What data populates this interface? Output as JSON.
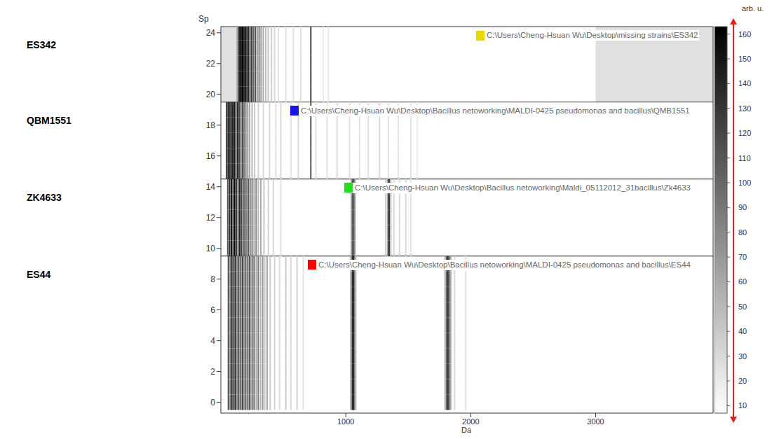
{
  "chart_data": {
    "type": "gel",
    "x_label": "Da",
    "y_label": "Sp",
    "xlim": [
      0,
      3940
    ],
    "xticks": [
      1000,
      2000,
      3000
    ],
    "ylim": [
      -0.7,
      24.4
    ],
    "yticks": [
      0,
      2,
      4,
      6,
      8,
      10,
      12,
      14,
      16,
      18,
      20,
      22,
      24
    ],
    "colorbar": {
      "label": "arb. u.",
      "range": [
        7,
        163
      ],
      "ticks": [
        10,
        20,
        30,
        40,
        50,
        60,
        70,
        80,
        90,
        100,
        110,
        120,
        130,
        140,
        150,
        160
      ]
    },
    "panels": [
      {
        "name": "ES342",
        "path": "C:\\Users\\Cheng-Hsuan Wu\\Desktop\\missing strains\\ES342",
        "color": "#e8d800",
        "rows": [
          20,
          21,
          22,
          23,
          24
        ],
        "mass_range": [
          130,
          3000
        ],
        "x": [
          130,
          142,
          152,
          163,
          174,
          185,
          196,
          208,
          220,
          233,
          246,
          260,
          275,
          290,
          306,
          322,
          340,
          360,
          380,
          405,
          430,
          460,
          520,
          580,
          640,
          720,
          820,
          860
        ],
        "intensity": [
          60,
          120,
          150,
          140,
          160,
          130,
          150,
          120,
          140,
          110,
          130,
          100,
          110,
          80,
          90,
          70,
          60,
          50,
          40,
          35,
          30,
          25,
          25,
          25,
          25,
          120,
          20,
          20
        ]
      },
      {
        "name": "QBM1551",
        "path": "C:\\Users\\Cheng-Hsuan Wu\\Desktop\\Bacillus netoworking\\MALDI-0425 pseudomonas and bacillus\\QMB1551",
        "color": "#1414e6",
        "rows": [
          15,
          16,
          17,
          18,
          19
        ],
        "x": [
          45,
          58,
          70,
          82,
          95,
          108,
          120,
          133,
          146,
          160,
          173,
          186,
          200,
          215,
          230,
          250,
          270,
          300,
          340,
          390,
          440,
          480,
          560,
          620,
          720,
          760,
          850,
          930,
          1030,
          1110,
          1180,
          1270,
          1340,
          1420,
          1520,
          1570
        ],
        "intensity": [
          120,
          150,
          130,
          160,
          140,
          150,
          110,
          140,
          120,
          100,
          120,
          90,
          80,
          70,
          60,
          50,
          40,
          35,
          30,
          30,
          25,
          30,
          25,
          30,
          110,
          25,
          25,
          30,
          25,
          25,
          25,
          30,
          25,
          25,
          25,
          20
        ]
      },
      {
        "name": "ZK4633",
        "path": "C:\\Users\\Cheng-Hsuan Wu\\Desktop\\Bacillus netoworking\\Maldi_05112012_31bacillus\\Zk4633",
        "color": "#22dd22",
        "rows": [
          10,
          11,
          12,
          13,
          14
        ],
        "x": [
          55,
          70,
          84,
          97,
          110,
          124,
          138,
          151,
          165,
          179,
          193,
          207,
          221,
          236,
          250,
          266,
          282,
          300,
          320,
          345,
          380,
          420,
          480,
          1045,
          1056,
          1066,
          1076,
          1320,
          1335,
          1346,
          1360,
          1385,
          1430,
          1480,
          1520
        ],
        "intensity": [
          110,
          140,
          150,
          120,
          160,
          130,
          110,
          140,
          120,
          100,
          130,
          80,
          110,
          70,
          90,
          60,
          80,
          50,
          60,
          40,
          35,
          30,
          25,
          70,
          120,
          100,
          50,
          40,
          60,
          150,
          50,
          30,
          30,
          30,
          25
        ]
      },
      {
        "name": "ES44",
        "path": "C:\\Users\\Cheng-Hsuan Wu\\Desktop\\Bacillus netoworking\\MALDI-0425 pseudomonas and bacillus\\ES44",
        "color": "#ff0000",
        "rows": [
          0,
          1,
          2,
          3,
          4,
          5,
          6,
          7,
          8,
          9
        ],
        "x": [
          60,
          75,
          88,
          102,
          115,
          130,
          143,
          158,
          172,
          185,
          199,
          214,
          228,
          241,
          256,
          270,
          285,
          300,
          318,
          335,
          352,
          370,
          395,
          430,
          470,
          520,
          560,
          610,
          660,
          1040,
          1052,
          1061,
          1070,
          1080,
          1795,
          1808,
          1818,
          1828,
          1840,
          1870,
          1960
        ],
        "intensity": [
          120,
          90,
          140,
          110,
          150,
          80,
          120,
          100,
          130,
          70,
          110,
          90,
          120,
          60,
          100,
          80,
          60,
          90,
          50,
          70,
          40,
          60,
          40,
          35,
          30,
          40,
          30,
          35,
          25,
          60,
          130,
          150,
          90,
          50,
          60,
          110,
          130,
          100,
          60,
          30,
          25
        ]
      }
    ]
  }
}
